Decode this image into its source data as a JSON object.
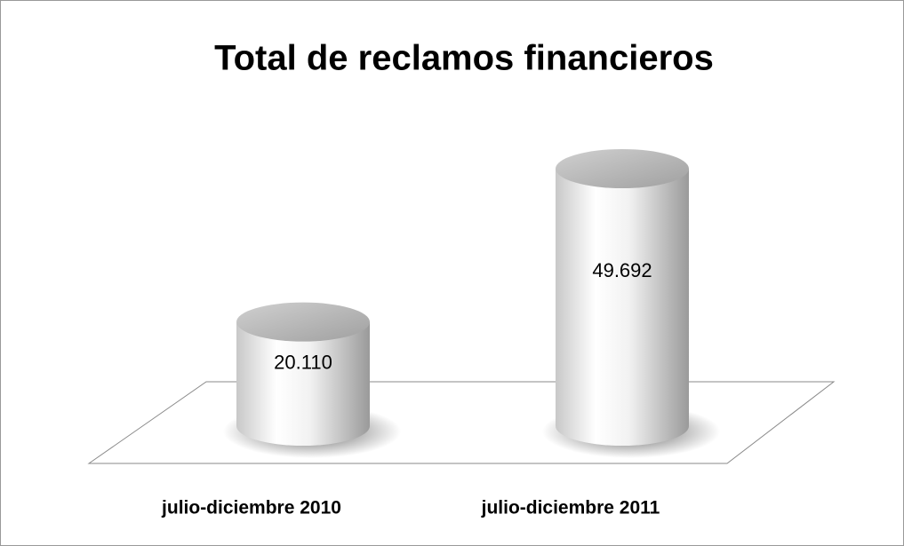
{
  "chart_data": {
    "type": "bar3d",
    "title": "Total de reclamos financieros",
    "categories": [
      "julio-diciembre 2010",
      "julio-diciembre 2011"
    ],
    "values": [
      20110,
      49692
    ],
    "value_labels": [
      "20.110",
      "49.692"
    ]
  }
}
